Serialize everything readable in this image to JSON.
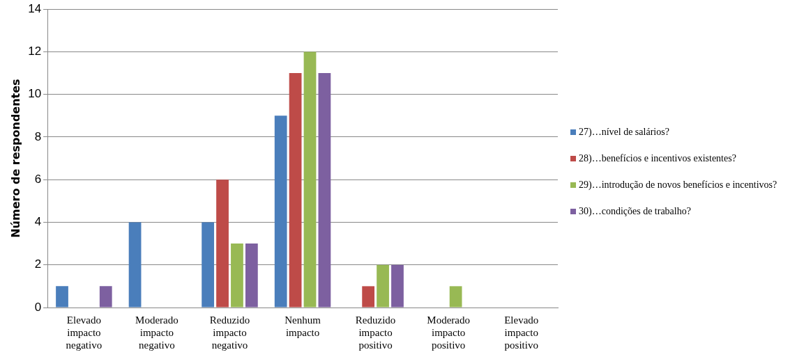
{
  "chart_data": {
    "type": "bar",
    "ylabel": "Número de respondentes",
    "categories": [
      "Elevado impacto negativo",
      "Moderado impacto negativo",
      "Reduzido impacto negativo",
      "Nenhum impacto",
      "Reduzido impacto positivo",
      "Moderado impacto positivo",
      "Elevado impacto positivo"
    ],
    "series": [
      {
        "name": "27)…nível de salários?",
        "color": "#4a7ebb",
        "values": [
          1,
          4,
          4,
          9,
          0,
          0,
          0
        ]
      },
      {
        "name": "28)…benefícios e incentivos existentes?",
        "color": "#be4b48",
        "values": [
          0,
          0,
          6,
          11,
          1,
          0,
          0
        ]
      },
      {
        "name": "29)…introdução de novos benefícios e incentivos?",
        "color": "#98b954",
        "values": [
          0,
          0,
          3,
          12,
          2,
          1,
          0
        ]
      },
      {
        "name": "30)…condições de trabalho?",
        "color": "#7d60a0",
        "values": [
          1,
          0,
          3,
          11,
          2,
          0,
          0
        ]
      }
    ],
    "ylim": [
      0,
      14
    ],
    "yticks": [
      0,
      2,
      4,
      6,
      8,
      10,
      12,
      14
    ],
    "grid": "y",
    "legend": "right"
  }
}
